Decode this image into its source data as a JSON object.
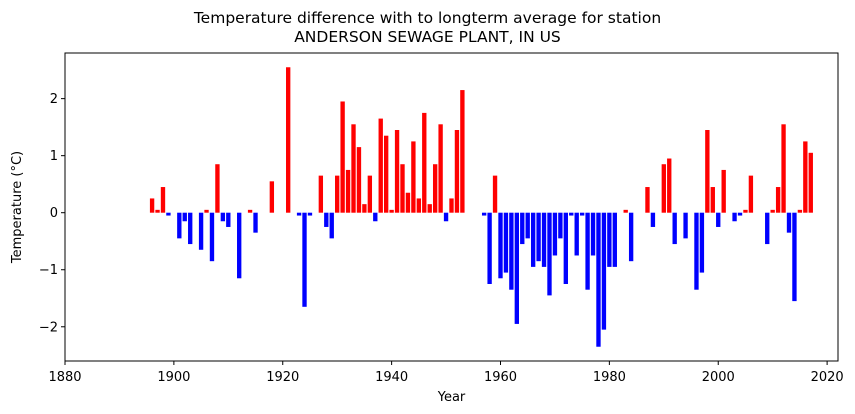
{
  "chart_data": {
    "type": "bar",
    "title_lines": [
      "Temperature difference with to longterm average for station",
      "ANDERSON SEWAGE PLANT, IN US"
    ],
    "xlabel": "Year",
    "ylabel": "Temperature (°C)",
    "xlim": [
      1880,
      2022
    ],
    "ylim": [
      -2.6,
      2.8
    ],
    "x_ticks": [
      1880,
      1900,
      1920,
      1940,
      1960,
      1980,
      2000,
      2020
    ],
    "y_ticks": [
      -2,
      -1,
      0,
      1,
      2
    ],
    "y_tick_labels": [
      "−2",
      "−1",
      "0",
      "1",
      "2"
    ],
    "colors": {
      "positive": "#ff0000",
      "negative": "#0000ff"
    },
    "grid": false,
    "legend": "none",
    "x": [
      1896,
      1897,
      1898,
      1899,
      1901,
      1902,
      1903,
      1905,
      1906,
      1907,
      1908,
      1909,
      1910,
      1912,
      1914,
      1915,
      1918,
      1921,
      1923,
      1924,
      1925,
      1927,
      1928,
      1929,
      1930,
      1931,
      1932,
      1933,
      1934,
      1935,
      1936,
      1937,
      1938,
      1939,
      1940,
      1941,
      1942,
      1943,
      1944,
      1945,
      1946,
      1947,
      1948,
      1949,
      1950,
      1951,
      1952,
      1953,
      1957,
      1958,
      1959,
      1960,
      1961,
      1962,
      1963,
      1964,
      1965,
      1966,
      1967,
      1968,
      1969,
      1970,
      1971,
      1972,
      1973,
      1974,
      1975,
      1976,
      1977,
      1978,
      1979,
      1980,
      1981,
      1983,
      1984,
      1987,
      1988,
      1990,
      1991,
      1992,
      1994,
      1996,
      1997,
      1998,
      1999,
      2000,
      2001,
      2003,
      2004,
      2005,
      2006,
      2009,
      2010,
      2011,
      2012,
      2013,
      2014,
      2015,
      2016,
      2017
    ],
    "values": [
      0.25,
      0.05,
      0.45,
      -0.05,
      -0.45,
      -0.15,
      -0.55,
      -0.65,
      0.05,
      -0.85,
      0.85,
      -0.15,
      -0.25,
      -1.15,
      0.05,
      -0.35,
      0.55,
      2.55,
      -0.05,
      -1.65,
      -0.05,
      0.65,
      -0.25,
      -0.45,
      0.65,
      1.95,
      0.75,
      1.55,
      1.15,
      0.15,
      0.65,
      -0.15,
      1.65,
      1.35,
      0.05,
      1.45,
      0.85,
      0.35,
      1.25,
      0.25,
      1.75,
      0.15,
      0.85,
      1.55,
      -0.15,
      0.25,
      1.45,
      2.15,
      -0.05,
      -1.25,
      0.65,
      -1.15,
      -1.05,
      -1.35,
      -1.95,
      -0.55,
      -0.45,
      -0.95,
      -0.85,
      -0.95,
      -1.45,
      -0.75,
      -0.45,
      -1.25,
      -0.05,
      -0.75,
      -0.05,
      -1.35,
      -0.75,
      -2.35,
      -2.05,
      -0.95,
      -0.95,
      0.05,
      -0.85,
      0.45,
      -0.25,
      0.85,
      0.95,
      -0.55,
      -0.45,
      -1.35,
      -1.05,
      1.45,
      0.45,
      -0.25,
      0.75,
      -0.15,
      -0.05,
      0.05,
      0.65,
      -0.55,
      0.05,
      0.45,
      1.55,
      -0.35,
      -1.55,
      0.05,
      1.25,
      1.05
    ]
  }
}
